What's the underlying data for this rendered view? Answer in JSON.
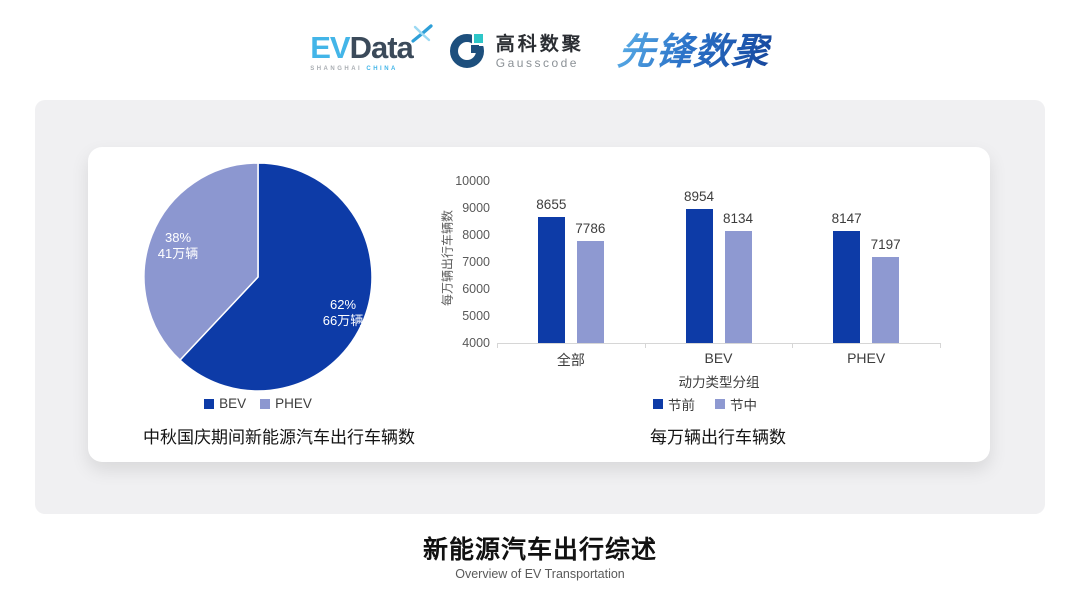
{
  "header": {
    "evdata": {
      "ev": "EV",
      "data": "Data",
      "sub_left": "SHANGHAI",
      "sub_right": "CHINA"
    },
    "gausscode": {
      "cn": "高科数聚",
      "en": "Gausscode"
    },
    "xianfeng": {
      "text": "先锋数聚"
    }
  },
  "colors": {
    "series_dark_blue": "#0d3ba7",
    "series_light_blue": "#8e99d1",
    "brand_light_blue": "#43b5e8",
    "brand_navy": "#1d4f7d",
    "brand_teal": "#2ec6c8",
    "panel_gray": "#f0f0f2",
    "axis_gray": "#595959"
  },
  "chart_data": [
    {
      "type": "pie",
      "title": "中秋国庆期间新能源汽车出行车辆数",
      "start_angle_deg": 0,
      "direction": "clockwise",
      "legend_position": "bottom",
      "slices": [
        {
          "label": "BEV",
          "percent": 62,
          "percent_label": "62%",
          "amount_label": "66万辆",
          "color": "#0d3ba7"
        },
        {
          "label": "PHEV",
          "percent": 38,
          "percent_label": "38%",
          "amount_label": "41万辆",
          "color": "#8c97d0"
        }
      ]
    },
    {
      "type": "bar",
      "title": "每万辆出行车辆数",
      "xlabel": "动力类型分组",
      "ylabel": "每万辆出行车辆数",
      "categories": [
        "全部",
        "BEV",
        "PHEV"
      ],
      "series": [
        {
          "name": "节前",
          "color": "#0d3ba7",
          "values": [
            8655,
            8954,
            8147
          ]
        },
        {
          "name": "节中",
          "color": "#8e99d1",
          "values": [
            7786,
            8134,
            7197
          ]
        }
      ],
      "ylim": [
        4000,
        10000
      ],
      "ytick_step": 1000,
      "grid": false,
      "legend_position": "bottom"
    }
  ],
  "footer": {
    "title": "新能源汽车出行综述",
    "subtitle": "Overview of EV Transportation"
  }
}
